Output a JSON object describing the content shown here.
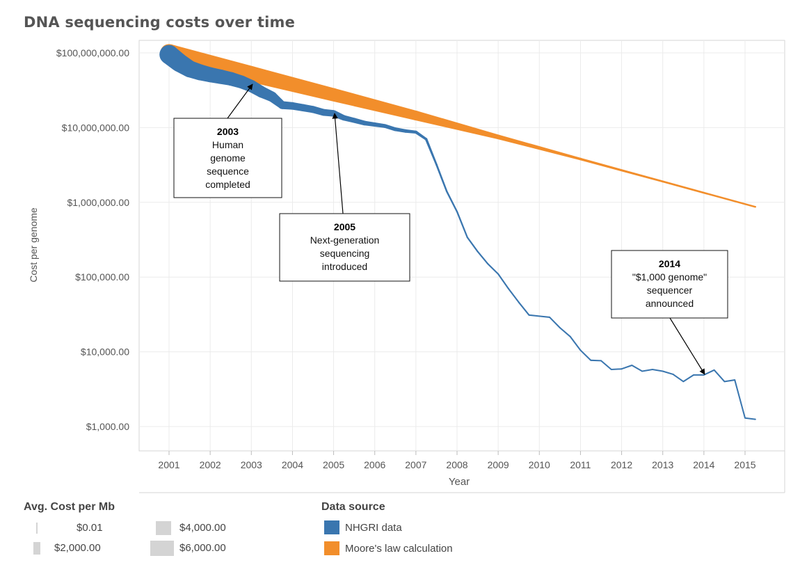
{
  "chart_data": {
    "type": "line",
    "title": "DNA sequencing costs over time",
    "xlabel": "Year",
    "ylabel": "Cost per genome",
    "y_scale": "log",
    "ylim": [
      600,
      150000000
    ],
    "xlim": [
      2000.25,
      2016.0
    ],
    "x_ticks": [
      2001,
      2002,
      2003,
      2004,
      2005,
      2006,
      2007,
      2008,
      2009,
      2010,
      2011,
      2012,
      2013,
      2014,
      2015
    ],
    "y_ticks": [
      {
        "value": 100000000,
        "label": "$100,000,000.00"
      },
      {
        "value": 10000000,
        "label": "$10,000,000.00"
      },
      {
        "value": 1000000,
        "label": "$1,000,000.00"
      },
      {
        "value": 100000,
        "label": "$100,000.00"
      },
      {
        "value": 10000,
        "label": "$10,000.00"
      },
      {
        "value": 1000,
        "label": "$1,000.00"
      }
    ],
    "series": [
      {
        "name": "NHGRI data",
        "color": "#3a76af",
        "points": [
          [
            2001.0,
            95000000,
            6000
          ],
          [
            2001.25,
            74000000,
            5500
          ],
          [
            2001.5,
            61000000,
            4500
          ],
          [
            2001.75,
            55000000,
            4000
          ],
          [
            2002.0,
            51000000,
            3500
          ],
          [
            2002.25,
            48000000,
            3200
          ],
          [
            2002.5,
            45000000,
            2800
          ],
          [
            2002.75,
            41000000,
            2500
          ],
          [
            2003.0,
            36000000,
            2200
          ],
          [
            2003.25,
            30000000,
            1900
          ],
          [
            2003.5,
            26000000,
            1500
          ],
          [
            2003.75,
            20000000,
            800
          ],
          [
            2004.0,
            19500000,
            700
          ],
          [
            2004.25,
            18500000,
            650
          ],
          [
            2004.5,
            17500000,
            600
          ],
          [
            2004.75,
            16000000,
            550
          ],
          [
            2005.0,
            15500000,
            500
          ],
          [
            2005.25,
            13500000,
            300
          ],
          [
            2005.5,
            12500000,
            250
          ],
          [
            2005.75,
            11500000,
            200
          ],
          [
            2006.0,
            11000000,
            150
          ],
          [
            2006.25,
            10500000,
            120
          ],
          [
            2006.5,
            9500000,
            100
          ],
          [
            2006.75,
            9000000,
            80
          ],
          [
            2007.0,
            8700000,
            50
          ],
          [
            2007.25,
            7000000,
            20
          ],
          [
            2007.5,
            3200000,
            5
          ],
          [
            2007.75,
            1400000,
            2
          ],
          [
            2008.0,
            750000,
            1
          ],
          [
            2008.25,
            340000,
            0.5
          ],
          [
            2008.5,
            220000,
            0.3
          ],
          [
            2008.75,
            150000,
            0.2
          ],
          [
            2009.0,
            110000,
            0.15
          ],
          [
            2009.25,
            70000,
            0.1
          ],
          [
            2009.5,
            46000,
            0.08
          ],
          [
            2009.75,
            31000,
            0.07
          ],
          [
            2010.0,
            30000,
            0.06
          ],
          [
            2010.25,
            29000,
            0.05
          ],
          [
            2010.5,
            21000,
            0.04
          ],
          [
            2010.75,
            16000,
            0.03
          ],
          [
            2011.0,
            10500,
            0.02
          ],
          [
            2011.25,
            7700,
            0.02
          ],
          [
            2011.5,
            7600,
            0.02
          ],
          [
            2011.75,
            5800,
            0.01
          ],
          [
            2012.0,
            5900,
            0.01
          ],
          [
            2012.25,
            6600,
            0.01
          ],
          [
            2012.5,
            5500,
            0.01
          ],
          [
            2012.75,
            5800,
            0.01
          ],
          [
            2013.0,
            5500,
            0.01
          ],
          [
            2013.25,
            5000,
            0.01
          ],
          [
            2013.5,
            4000,
            0.01
          ],
          [
            2013.75,
            4900,
            0.01
          ],
          [
            2014.0,
            4900,
            0.01
          ],
          [
            2014.25,
            5700,
            0.01
          ],
          [
            2014.5,
            4000,
            0.01
          ],
          [
            2014.75,
            4200,
            0.01
          ],
          [
            2015.0,
            1300,
            0.01
          ],
          [
            2015.25,
            1250,
            0.01
          ]
        ]
      },
      {
        "name": "Moore's law calculation",
        "color": "#f28e2b",
        "points": [
          [
            2001.0,
            100000000,
            5000
          ],
          [
            2003.0,
            52000000,
            4000
          ],
          [
            2005.0,
            27500000,
            2600
          ],
          [
            2007.0,
            14500000,
            1300
          ],
          [
            2009.0,
            7500000,
            200
          ],
          [
            2011.0,
            3800000,
            20
          ],
          [
            2013.0,
            1900000,
            5
          ],
          [
            2015.25,
            870000,
            2
          ]
        ]
      }
    ],
    "annotations": [
      {
        "year": "2003",
        "lines": [
          "Human",
          "genome",
          "sequence",
          "completed"
        ]
      },
      {
        "year": "2005",
        "lines": [
          "Next-generation",
          "sequencing",
          "introduced"
        ]
      },
      {
        "year": "2014",
        "lines": [
          "\"$1,000 genome\"",
          "sequencer",
          "announced"
        ]
      }
    ],
    "legend": {
      "size_title": "Avg. Cost per Mb",
      "size_items": [
        "$0.01",
        "$2,000.00",
        "$4,000.00",
        "$6,000.00"
      ],
      "color_title": "Data source",
      "color_items": [
        "NHGRI data",
        "Moore's law calculation"
      ]
    }
  }
}
